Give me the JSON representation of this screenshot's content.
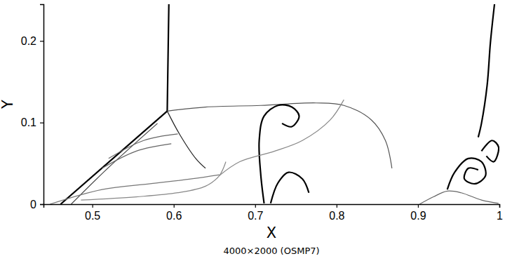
{
  "chart_data": {
    "type": "line",
    "title": "4000×2000 (OSMP7)",
    "x_label": "X",
    "y_label": "Y",
    "xlim": [
      0.44,
      1.0
    ],
    "ylim": [
      0,
      0.245
    ],
    "xticks": [
      0.5,
      0.6,
      0.7,
      0.8,
      0.9,
      1
    ],
    "yticks": [
      0,
      0.1,
      0.2
    ],
    "series": [
      {
        "color": "#000000",
        "x": [
          0.594,
          0.593,
          0.592
        ],
        "values": [
          0.245,
          0.18,
          0.114
        ]
      },
      {
        "color": "#000000",
        "x": [
          0.461,
          0.592
        ],
        "values": [
          0,
          0.114
        ]
      },
      {
        "color": "#555555",
        "x": [
          0.592,
          0.639,
          0.707,
          0.775,
          0.809,
          0.843,
          0.86,
          0.868
        ],
        "values": [
          0.114,
          0.119,
          0.121,
          0.124,
          0.121,
          0.103,
          0.078,
          0.044
        ]
      },
      {
        "color": "#444444",
        "x": [
          0.474,
          0.52,
          0.58
        ],
        "values": [
          0,
          0.045,
          0.099
        ]
      },
      {
        "color": "#222222",
        "x": [
          0.592,
          0.607,
          0.627,
          0.639
        ],
        "values": [
          0.114,
          0.086,
          0.056,
          0.044
        ]
      },
      {
        "color": "#777777",
        "x": [
          0.448,
          0.512,
          0.571,
          0.622,
          0.656
        ],
        "values": [
          0,
          0.018,
          0.025,
          0.031,
          0.036
        ]
      },
      {
        "color": "#888888",
        "x": [
          0.486,
          0.554,
          0.605,
          0.639,
          0.656,
          0.664
        ],
        "values": [
          0.005,
          0.009,
          0.014,
          0.022,
          0.035,
          0.052
        ]
      },
      {
        "color": "#000000",
        "x": [
          0.711,
          0.707,
          0.705,
          0.711,
          0.728,
          0.745,
          0.754,
          0.745,
          0.733
        ],
        "values": [
          0.001,
          0.035,
          0.078,
          0.108,
          0.121,
          0.119,
          0.108,
          0.095,
          0.099
        ]
      },
      {
        "color": "#000000",
        "x": [
          0.719,
          0.728,
          0.741,
          0.758,
          0.766
        ],
        "values": [
          0.001,
          0.026,
          0.039,
          0.031,
          0.014
        ]
      },
      {
        "color": "#888888",
        "x": [
          0.656,
          0.681,
          0.724,
          0.758,
          0.792,
          0.809
        ],
        "values": [
          0.035,
          0.052,
          0.065,
          0.078,
          0.103,
          0.128
        ]
      },
      {
        "color": "#000000",
        "x": [
          0.936,
          0.945,
          0.962,
          0.978,
          0.983,
          0.97,
          0.957,
          0.962,
          0.974
        ],
        "values": [
          0.018,
          0.039,
          0.056,
          0.052,
          0.035,
          0.025,
          0.031,
          0.044,
          0.042
        ]
      },
      {
        "color": "#000000",
        "x": [
          0.978,
          0.991,
          0.999,
          0.993,
          0.984
        ],
        "values": [
          0.065,
          0.078,
          0.07,
          0.052,
          0.059
        ]
      },
      {
        "color": "#000000",
        "x": [
          0.994,
          0.989,
          0.985,
          0.978,
          0.974
        ],
        "values": [
          0.245,
          0.198,
          0.146,
          0.099,
          0.082
        ]
      },
      {
        "color": "#666666",
        "x": [
          0.902,
          0.919,
          0.936,
          0.953,
          0.978,
          0.999
        ],
        "values": [
          0,
          0.009,
          0.016,
          0.014,
          0.005,
          0.001
        ]
      },
      {
        "color": "#666666",
        "x": [
          0.512,
          0.554,
          0.597
        ],
        "values": [
          0.044,
          0.065,
          0.074
        ]
      },
      {
        "color": "#666666",
        "x": [
          0.52,
          0.563,
          0.605
        ],
        "values": [
          0.056,
          0.078,
          0.086
        ]
      }
    ]
  }
}
